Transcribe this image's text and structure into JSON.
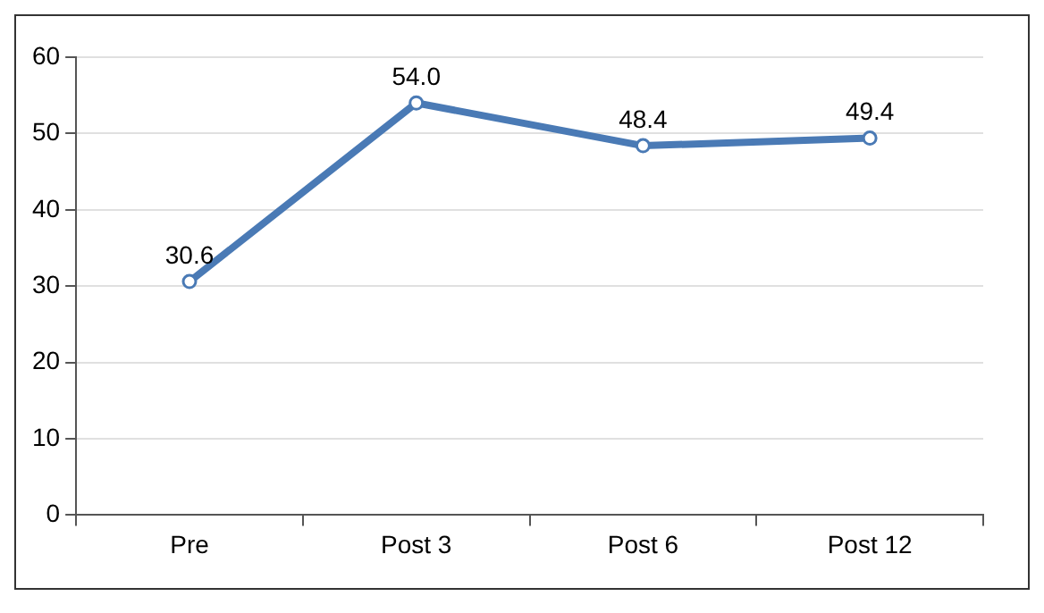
{
  "chart_data": {
    "type": "line",
    "categories": [
      "Pre",
      "Post 3",
      "Post 6",
      "Post 12"
    ],
    "series": [
      {
        "color": "#4a7ab5",
        "values": [
          30.6,
          54.0,
          48.4,
          49.4
        ],
        "value_labels": [
          "30.6",
          "54.0",
          "48.4",
          "49.4"
        ]
      }
    ],
    "ylim": [
      0,
      60
    ],
    "yticks": [
      0,
      10,
      20,
      30,
      40,
      50,
      60
    ],
    "grid": "y",
    "legend": false,
    "marker": "circle",
    "line_style": "solid"
  }
}
